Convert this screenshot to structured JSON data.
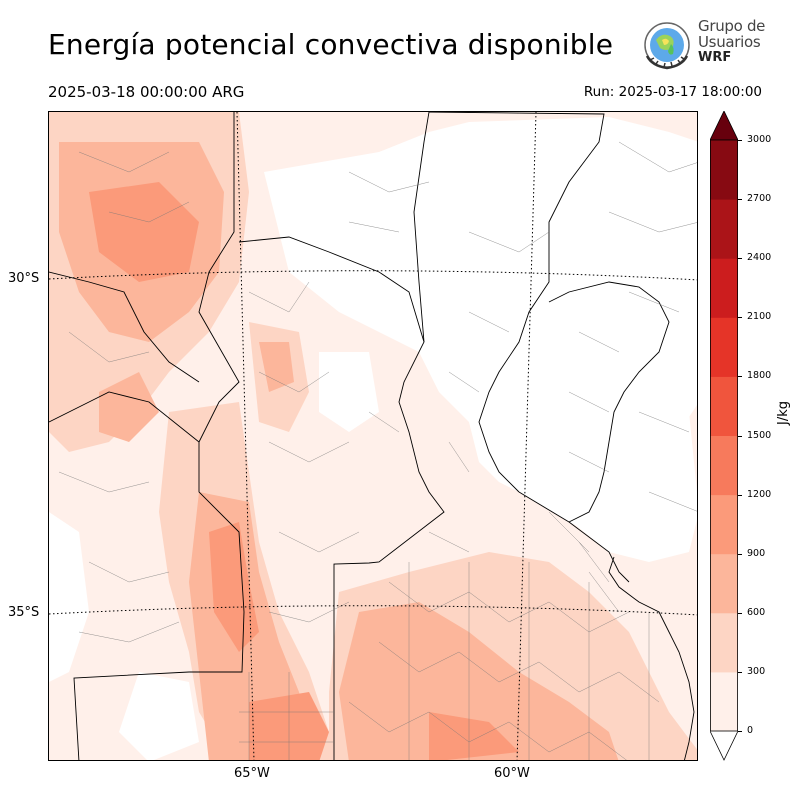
{
  "header": {
    "title": "Energía potencial convectiva disponible",
    "valid_time": "2025-03-18 00:00:00 ARG",
    "run_label": "Run: 2025-03-17 18:00:00"
  },
  "logo": {
    "line1": "Grupo de",
    "line2": "Usuarios",
    "line3": "WRF"
  },
  "map": {
    "lat_labels": [
      "30°S",
      "35°S"
    ],
    "lon_labels": [
      "65°W",
      "60°W"
    ]
  },
  "colorbar": {
    "label": "J/kg",
    "ticks": [
      "0",
      "300",
      "600",
      "900",
      "1200",
      "1500",
      "1800",
      "2100",
      "2400",
      "2700",
      "3000"
    ],
    "colors": [
      "#fff0ea",
      "#fdd5c4",
      "#fcb69b",
      "#fb9a7a",
      "#f77a5c",
      "#f0553d",
      "#e53428",
      "#cc1d1e",
      "#ab1418",
      "#870a12"
    ],
    "over_color": "#67000d",
    "under_color": "#ffffff"
  }
}
